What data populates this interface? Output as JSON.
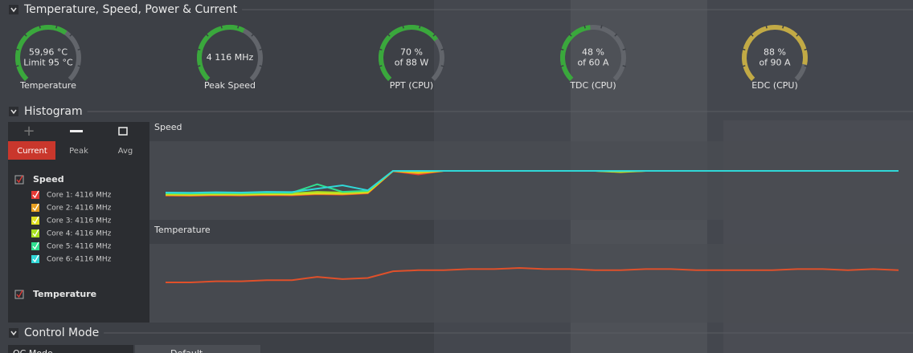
{
  "sections": [
    "Temperature, Speed, Power & Current",
    "Histogram",
    "Control Mode"
  ],
  "gauges": [
    {
      "lines": [
        "59,96 °C",
        "Limit 95 °C"
      ],
      "label": "Temperature",
      "percent": 63,
      "color": "#3aa83c"
    },
    {
      "lines": [
        "4 116  MHz"
      ],
      "label": "Peak Speed",
      "percent": 60,
      "color": "#3aa83c"
    },
    {
      "lines": [
        "70 %",
        "of 88 W"
      ],
      "label": "PPT (CPU)",
      "percent": 70,
      "color": "#3aa83c"
    },
    {
      "lines": [
        "48 %",
        "of 60 A"
      ],
      "label": "TDC (CPU)",
      "percent": 48,
      "color": "#3aa83c"
    },
    {
      "lines": [
        "88 %",
        "of 90 A"
      ],
      "label": "EDC (CPU)",
      "percent": 88,
      "color": "#c2aa45"
    }
  ],
  "histogram": {
    "tabs": [
      "Current",
      "Peak",
      "Avg"
    ],
    "legend_speed": {
      "title": "Speed",
      "items": [
        "Core 1: 4116 MHz",
        "Core 2: 4116 MHz",
        "Core 3: 4116 MHz",
        "Core 4: 4116 MHz",
        "Core 5: 4116 MHz",
        "Core 6: 4116 MHz"
      ]
    },
    "legend_temperature": "Temperature",
    "charts": [
      {
        "title": "Speed",
        "series": [
          {
            "color": "#e53935",
            "values": [
              2980,
              2970,
              2990,
              2980,
              3000,
              2990,
              3040,
              3020,
              3080,
              4100,
              3950,
              4116,
              4116,
              4116,
              4116,
              4116,
              4116,
              4116,
              4116,
              4116,
              4116,
              4116,
              4116,
              4116,
              4116,
              4116,
              4116,
              4116,
              4116,
              4116
            ]
          },
          {
            "color": "#e8a020",
            "values": [
              3000,
              2990,
              3010,
              3000,
              3020,
              3010,
              3060,
              3040,
              3100,
              4110,
              4000,
              4116,
              4116,
              4116,
              4116,
              4116,
              4116,
              4116,
              4100,
              4116,
              4116,
              4116,
              4116,
              4116,
              4116,
              4116,
              4116,
              4116,
              4116,
              4116
            ]
          },
          {
            "color": "#e0e020",
            "values": [
              3030,
              3020,
              3040,
              3030,
              3050,
              3040,
              3090,
              3080,
              3130,
              4116,
              4060,
              4116,
              4116,
              4116,
              4116,
              4116,
              4116,
              4116,
              4060,
              4116,
              4116,
              4116,
              4116,
              4116,
              4116,
              4116,
              4116,
              4116,
              4116,
              4116
            ]
          },
          {
            "color": "#a8e020",
            "values": [
              3060,
              3050,
              3070,
              3060,
              3090,
              3080,
              3150,
              3120,
              3170,
              4116,
              4100,
              4116,
              4116,
              4116,
              4116,
              4116,
              4116,
              4116,
              4090,
              4116,
              4116,
              4116,
              4116,
              4116,
              4116,
              4116,
              4116,
              4116,
              4116,
              4116
            ]
          },
          {
            "color": "#30e090",
            "values": [
              3090,
              3080,
              3100,
              3090,
              3120,
              3110,
              3500,
              3150,
              3200,
              4116,
              4116,
              4116,
              4116,
              4116,
              4116,
              4116,
              4116,
              4116,
              4116,
              4116,
              4116,
              4116,
              4116,
              4116,
              4116,
              4116,
              4116,
              4116,
              4116,
              4116
            ]
          },
          {
            "color": "#30d8d8",
            "values": [
              3120,
              3110,
              3130,
              3120,
              3150,
              3140,
              3300,
              3450,
              3220,
              4116,
              4116,
              4116,
              4116,
              4116,
              4116,
              4116,
              4116,
              4116,
              4110,
              4116,
              4116,
              4116,
              4116,
              4116,
              4116,
              4116,
              4116,
              4116,
              4116,
              4116
            ]
          }
        ]
      },
      {
        "title": "Temperature",
        "series": [
          {
            "color": "#e0502a",
            "values": [
              48,
              48,
              49,
              49,
              50,
              50,
              53,
              51,
              52,
              58,
              59,
              59,
              60,
              60,
              61,
              60,
              60,
              59,
              59,
              60,
              60,
              59,
              59,
              59,
              59,
              60,
              60,
              59,
              60,
              59
            ]
          }
        ]
      }
    ]
  },
  "control_mode": {
    "buttons": [
      "OC Mode",
      "Default"
    ]
  }
}
